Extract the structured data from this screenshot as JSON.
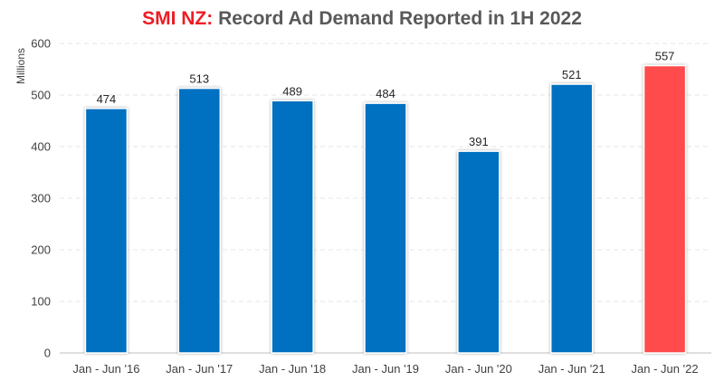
{
  "chart_data": {
    "type": "bar",
    "title_prefix": "SMI NZ:",
    "title_rest": "Record Ad Demand Reported in 1H 2022",
    "xlabel": "",
    "ylabel": "Millions",
    "ylim": [
      0,
      600
    ],
    "yticks": [
      0,
      100,
      200,
      300,
      400,
      500,
      600
    ],
    "grid": true,
    "categories": [
      "Jan - Jun '16",
      "Jan - Jun '17",
      "Jan - Jun '18",
      "Jan - Jun '19",
      "Jan - Jun '20",
      "Jan - Jun '21",
      "Jan - Jun '22"
    ],
    "values": [
      474,
      513,
      489,
      484,
      391,
      521,
      557
    ],
    "colors": {
      "bar": "#0070c0",
      "highlight_bar": "#ff4b4b",
      "title_accent": "#ee1c25"
    },
    "highlight_index": 6
  }
}
